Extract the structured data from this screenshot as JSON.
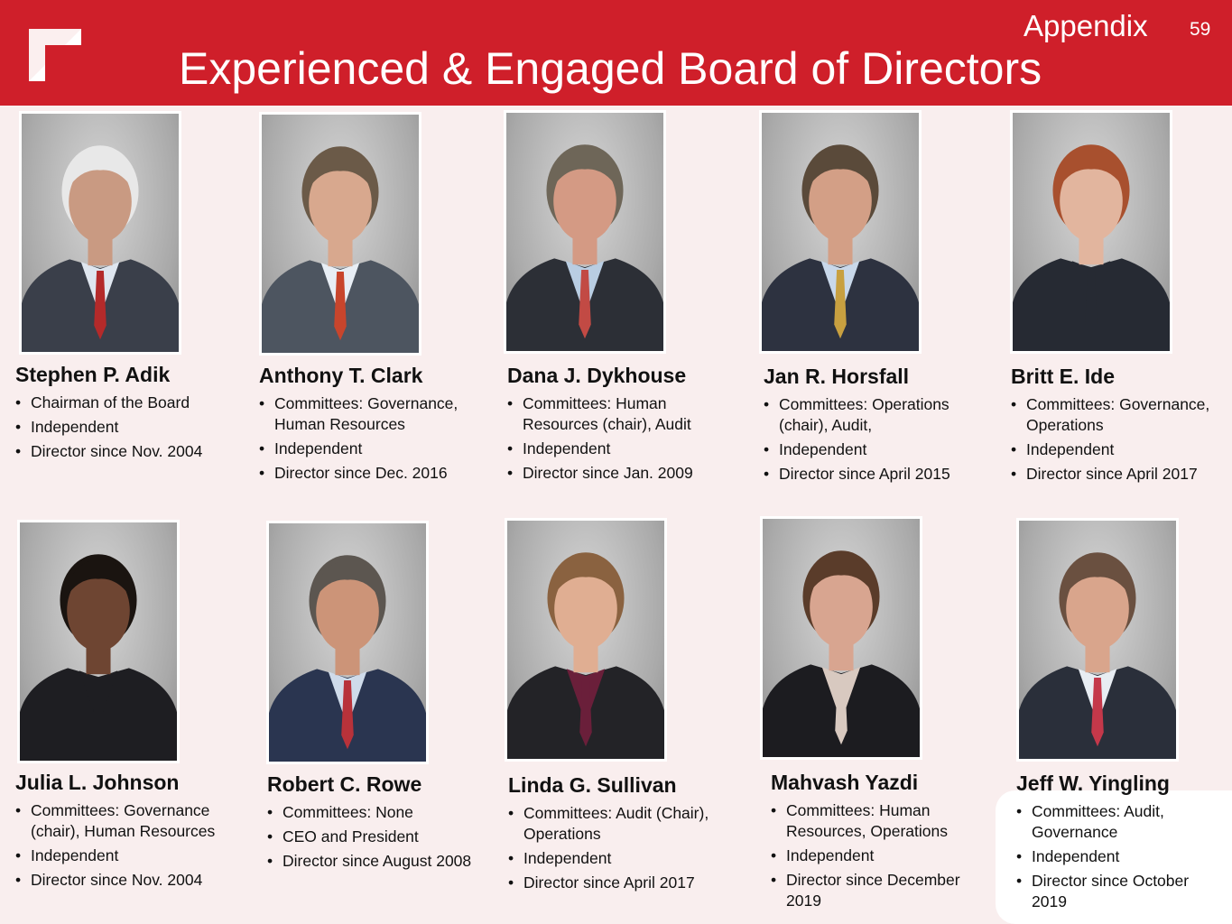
{
  "header": {
    "section": "Appendix",
    "page_number": "59",
    "title": "Experienced & Engaged Board of Directors"
  },
  "colors": {
    "brand_red": "#cf1f2a",
    "background": "#f9eeee"
  },
  "directors": [
    {
      "name": "Stephen P. Adik",
      "bullets": [
        "Chairman of the Board",
        "Independent",
        "Director since Nov. 2004"
      ],
      "photo": {
        "suit": "#3a3f4a",
        "tie": "#b42a2a",
        "hair": "#e8e8e8",
        "skin": "#c99a82",
        "shirt": "#dfe6ef"
      }
    },
    {
      "name": "Anthony T. Clark",
      "bullets": [
        "Committees:  Governance, Human Resources",
        "Independent",
        "Director since Dec. 2016"
      ],
      "photo": {
        "suit": "#4d5560",
        "tie": "#c8452c",
        "hair": "#6b5a48",
        "skin": "#d8a88e",
        "shirt": "#e8eef5"
      }
    },
    {
      "name": "Dana J. Dykhouse",
      "bullets": [
        "Committees:  Human Resources (chair), Audit",
        "Independent",
        "Director since Jan. 2009"
      ],
      "photo": {
        "suit": "#2c2f36",
        "tie": "#c24a44",
        "hair": "#6e6658",
        "skin": "#d49a84",
        "shirt": "#b9cde2"
      }
    },
    {
      "name": "Jan R. Horsfall",
      "bullets": [
        "Committees:  Operations (chair), Audit,",
        "Independent",
        "Director since April 2015"
      ],
      "photo": {
        "suit": "#2d3240",
        "tie": "#c8a040",
        "hair": "#5a4a3a",
        "skin": "#d39f86",
        "shirt": "#c9d8ea"
      }
    },
    {
      "name": "Britt E. Ide",
      "bullets": [
        "Committees: Governance, Operations",
        "Independent",
        "Director since April 2017"
      ],
      "photo": {
        "suit": "#262a33",
        "tie": "#262a33",
        "hair": "#a8502e",
        "skin": "#e2b59e",
        "shirt": "#262a33"
      }
    },
    {
      "name": "Julia L. Johnson",
      "bullets": [
        "Committees:  Governance (chair), Human Resources",
        "Independent",
        "Director since Nov. 2004"
      ],
      "photo": {
        "suit": "#1e1e22",
        "tie": "#1e1e22",
        "hair": "#1a1410",
        "skin": "#6e4532",
        "shirt": "#1e1e22"
      }
    },
    {
      "name": "Robert C. Rowe",
      "bullets": [
        "Committees:  None",
        "CEO and President",
        "Director since August 2008"
      ],
      "photo": {
        "suit": "#2a3550",
        "tie": "#b8323a",
        "hair": "#5c5650",
        "skin": "#cc9478",
        "shirt": "#cfdbea"
      }
    },
    {
      "name": "Linda G. Sullivan",
      "bullets": [
        "Committees:  Audit (Chair), Operations",
        "Independent",
        "Director since April 2017"
      ],
      "photo": {
        "suit": "#232327",
        "tie": "#6a1f3a",
        "hair": "#8a6240",
        "skin": "#e0ae92",
        "shirt": "#6a1f3a"
      }
    },
    {
      "name": "Mahvash Yazdi",
      "bullets": [
        "Committees:  Human Resources, Operations",
        "Independent",
        "Director since December 2019"
      ],
      "photo": {
        "suit": "#1c1c20",
        "tie": "#d8c9c0",
        "hair": "#5a3c2a",
        "skin": "#d8a590",
        "shirt": "#d8c9c0"
      }
    },
    {
      "name": "Jeff W. Yingling",
      "bullets": [
        "Committees:  Audit, Governance",
        "Independent",
        "Director since October 2019"
      ],
      "photo": {
        "suit": "#2a2f3a",
        "tie": "#c4384a",
        "hair": "#6a5040",
        "skin": "#d9a58c",
        "shirt": "#e8edf3"
      }
    }
  ]
}
